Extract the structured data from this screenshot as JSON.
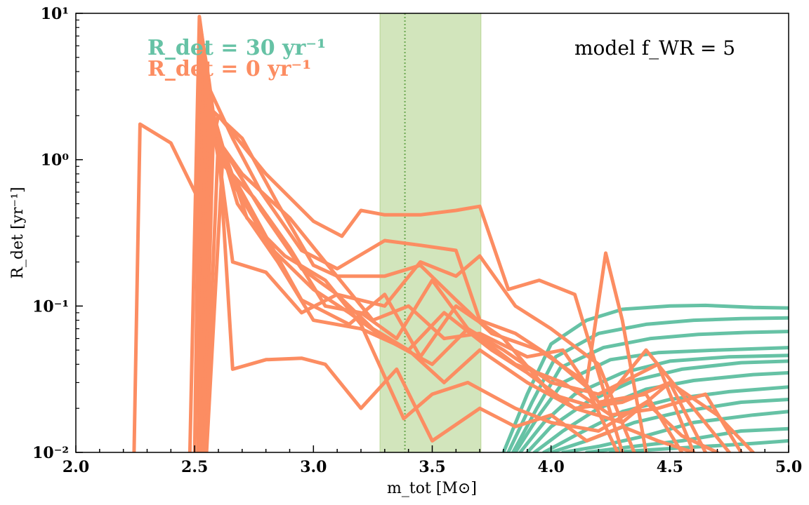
{
  "chart_data": {
    "type": "line",
    "xlabel": "m_tot [M⊙]",
    "ylabel": "R_det [yr⁻¹]",
    "xlim": [
      2.0,
      5.0
    ],
    "ylim": [
      0.01,
      10
    ],
    "yscale": "log",
    "x_ticks": [
      "2.0",
      "2.5",
      "3.0",
      "3.5",
      "4.0",
      "4.5",
      "5.0"
    ],
    "y_ticks": [
      "10⁻²",
      "10⁻¹",
      "10⁰",
      "10¹"
    ],
    "grid": false,
    "annotation": "model f_WR = 5",
    "legend": [
      {
        "text": "R_det = 30 yr⁻¹",
        "color": "#66c2a5"
      },
      {
        "text": "R_det = 0 yr⁻¹",
        "color": "#fc8d62"
      }
    ],
    "band": {
      "x_range": [
        3.28,
        3.705
      ],
      "median": 3.385,
      "color": "#a6cc7a"
    },
    "series_teal": [
      {
        "x": [
          3.8,
          3.9,
          4.0,
          4.15,
          4.3,
          4.5,
          4.65,
          4.85,
          5.0
        ],
        "values": [
          0.01,
          0.025,
          0.055,
          0.08,
          0.095,
          0.1,
          0.101,
          0.098,
          0.097
        ]
      },
      {
        "x": [
          3.82,
          3.92,
          4.02,
          4.2,
          4.4,
          4.6,
          4.8,
          5.0
        ],
        "values": [
          0.01,
          0.022,
          0.045,
          0.065,
          0.075,
          0.08,
          0.082,
          0.083
        ]
      },
      {
        "x": [
          3.85,
          3.95,
          4.05,
          4.25,
          4.45,
          4.7,
          5.0
        ],
        "values": [
          0.01,
          0.018,
          0.03,
          0.043,
          0.048,
          0.05,
          0.052
        ]
      },
      {
        "x": [
          3.87,
          3.97,
          4.1,
          4.3,
          4.5,
          4.75,
          5.0
        ],
        "values": [
          0.01,
          0.016,
          0.025,
          0.035,
          0.042,
          0.045,
          0.046
        ]
      },
      {
        "x": [
          3.9,
          4.0,
          4.15,
          4.35,
          4.55,
          4.8,
          5.0
        ],
        "values": [
          0.01,
          0.015,
          0.022,
          0.031,
          0.037,
          0.041,
          0.042
        ]
      },
      {
        "x": [
          3.93,
          4.05,
          4.2,
          4.4,
          4.6,
          4.85,
          5.0
        ],
        "values": [
          0.01,
          0.014,
          0.02,
          0.027,
          0.031,
          0.034,
          0.035
        ]
      },
      {
        "x": [
          3.97,
          4.1,
          4.3,
          4.5,
          4.75,
          5.0
        ],
        "values": [
          0.01,
          0.013,
          0.019,
          0.023,
          0.026,
          0.028
        ]
      },
      {
        "x": [
          4.0,
          4.15,
          4.35,
          4.55,
          4.8,
          5.0
        ],
        "values": [
          0.01,
          0.012,
          0.016,
          0.019,
          0.022,
          0.023
        ]
      },
      {
        "x": [
          4.05,
          4.2,
          4.4,
          4.6,
          4.85,
          5.0
        ],
        "values": [
          0.01,
          0.011,
          0.013,
          0.016,
          0.018,
          0.019
        ]
      },
      {
        "x": [
          4.15,
          4.35,
          4.55,
          4.8,
          5.0
        ],
        "values": [
          0.01,
          0.011,
          0.012,
          0.014,
          0.0145
        ]
      },
      {
        "x": [
          4.25,
          4.45,
          4.65,
          4.85,
          5.0
        ],
        "values": [
          0.01,
          0.0105,
          0.011,
          0.0115,
          0.012
        ]
      },
      {
        "x": [
          3.84,
          3.94,
          4.04,
          4.22,
          4.42,
          4.62,
          4.82,
          5.0
        ],
        "values": [
          0.01,
          0.02,
          0.038,
          0.052,
          0.06,
          0.064,
          0.066,
          0.067
        ]
      }
    ],
    "series_orange": [
      {
        "x": [
          2.245,
          2.27,
          2.4,
          2.52,
          2.6,
          2.8,
          3.0,
          3.12,
          3.2,
          3.3,
          3.45,
          3.6,
          3.7,
          3.82,
          3.95,
          4.1,
          4.3
        ],
        "values": [
          0.01,
          1.75,
          1.3,
          0.52,
          2.0,
          0.8,
          0.38,
          0.3,
          0.45,
          0.42,
          0.42,
          0.45,
          0.48,
          0.13,
          0.15,
          0.12,
          0.01
        ]
      },
      {
        "x": [
          2.48,
          2.52,
          2.56,
          2.66,
          2.78,
          2.95,
          3.1,
          3.3,
          3.45,
          3.6,
          3.7,
          3.85,
          4.0,
          4.15,
          4.28
        ],
        "values": [
          0.01,
          9.5,
          3.1,
          1.4,
          0.6,
          0.24,
          0.18,
          0.28,
          0.26,
          0.24,
          0.08,
          0.065,
          0.045,
          0.028,
          0.01
        ]
      },
      {
        "x": [
          2.5,
          2.525,
          2.56,
          2.66,
          2.8,
          2.95,
          3.1,
          3.3,
          3.45,
          3.6,
          3.7,
          3.85,
          4.0,
          4.2,
          4.35
        ],
        "values": [
          0.01,
          8.0,
          3.5,
          0.2,
          0.17,
          0.09,
          0.12,
          0.1,
          0.2,
          0.16,
          0.22,
          0.1,
          0.07,
          0.04,
          0.01
        ]
      },
      {
        "x": [
          2.515,
          2.53,
          2.57,
          2.7,
          2.85,
          3.0,
          3.1,
          3.3,
          3.45,
          3.6,
          3.75,
          3.95,
          4.15,
          4.23,
          4.3,
          4.4
        ],
        "values": [
          0.01,
          5.5,
          2.2,
          1.4,
          0.5,
          0.19,
          0.16,
          0.16,
          0.19,
          0.11,
          0.065,
          0.05,
          0.03,
          0.23,
          0.08,
          0.01
        ]
      },
      {
        "x": [
          2.52,
          2.535,
          2.58,
          2.7,
          2.9,
          3.05,
          3.25,
          3.4,
          3.55,
          3.7,
          3.9,
          4.05,
          4.2,
          4.4,
          4.55
        ],
        "values": [
          0.01,
          4.5,
          1.5,
          0.8,
          0.4,
          0.2,
          0.08,
          0.1,
          0.06,
          0.065,
          0.045,
          0.05,
          0.022,
          0.025,
          0.01
        ]
      },
      {
        "x": [
          2.52,
          2.545,
          2.6,
          2.75,
          2.9,
          3.05,
          3.2,
          3.35,
          3.5,
          3.65,
          3.8,
          4.0,
          4.2,
          4.45,
          4.6
        ],
        "values": [
          0.01,
          3.8,
          1.0,
          0.55,
          0.25,
          0.1,
          0.09,
          0.06,
          0.15,
          0.07,
          0.05,
          0.03,
          0.025,
          0.04,
          0.01
        ]
      },
      {
        "x": [
          2.52,
          2.55,
          2.62,
          2.78,
          2.95,
          3.1,
          3.25,
          3.4,
          3.55,
          3.75,
          3.9,
          4.1,
          4.3,
          4.5,
          4.65
        ],
        "values": [
          0.01,
          3.0,
          1.2,
          0.45,
          0.18,
          0.12,
          0.07,
          0.05,
          0.09,
          0.05,
          0.035,
          0.02,
          0.022,
          0.03,
          0.01
        ]
      },
      {
        "x": [
          2.53,
          2.56,
          2.64,
          2.8,
          2.95,
          3.15,
          3.3,
          3.45,
          3.6,
          3.8,
          4.0,
          4.2,
          4.4,
          4.6,
          4.75
        ],
        "values": [
          0.01,
          2.6,
          0.9,
          0.3,
          0.11,
          0.075,
          0.12,
          0.045,
          0.1,
          0.06,
          0.025,
          0.02,
          0.05,
          0.02,
          0.01
        ]
      },
      {
        "x": [
          2.535,
          2.57,
          2.66,
          2.82,
          3.0,
          3.15,
          3.3,
          3.5,
          3.65,
          3.85,
          4.05,
          4.25,
          4.45,
          4.65,
          4.8
        ],
        "values": [
          0.01,
          2.2,
          0.7,
          0.25,
          0.13,
          0.09,
          0.06,
          0.04,
          0.07,
          0.04,
          0.03,
          0.018,
          0.02,
          0.025,
          0.01
        ]
      },
      {
        "x": [
          2.54,
          2.58,
          2.68,
          2.85,
          3.0,
          3.2,
          3.4,
          3.55,
          3.7,
          3.9,
          4.1,
          4.3,
          4.5,
          4.7,
          4.85
        ],
        "values": [
          0.01,
          1.8,
          0.5,
          0.2,
          0.08,
          0.07,
          0.05,
          0.03,
          0.05,
          0.03,
          0.02,
          0.016,
          0.03,
          0.018,
          0.01
        ]
      },
      {
        "x": [
          2.545,
          2.6,
          2.66,
          2.8,
          2.95,
          3.05,
          3.2,
          3.35,
          3.5,
          3.7,
          3.85,
          4.0,
          4.15,
          4.3,
          4.45,
          4.6
        ],
        "values": [
          0.01,
          1.4,
          0.037,
          0.043,
          0.044,
          0.04,
          0.02,
          0.037,
          0.012,
          0.02,
          0.015,
          0.018,
          0.012,
          0.015,
          0.012,
          0.01
        ]
      },
      {
        "x": [
          2.55,
          2.62,
          2.72,
          2.88,
          3.05,
          3.2,
          3.38,
          3.5,
          3.65,
          3.85,
          4.0,
          4.2,
          4.4,
          4.55,
          4.7
        ],
        "values": [
          0.01,
          1.2,
          0.4,
          0.22,
          0.15,
          0.075,
          0.017,
          0.025,
          0.03,
          0.02,
          0.016,
          0.014,
          0.022,
          0.013,
          0.01
        ]
      }
    ]
  }
}
